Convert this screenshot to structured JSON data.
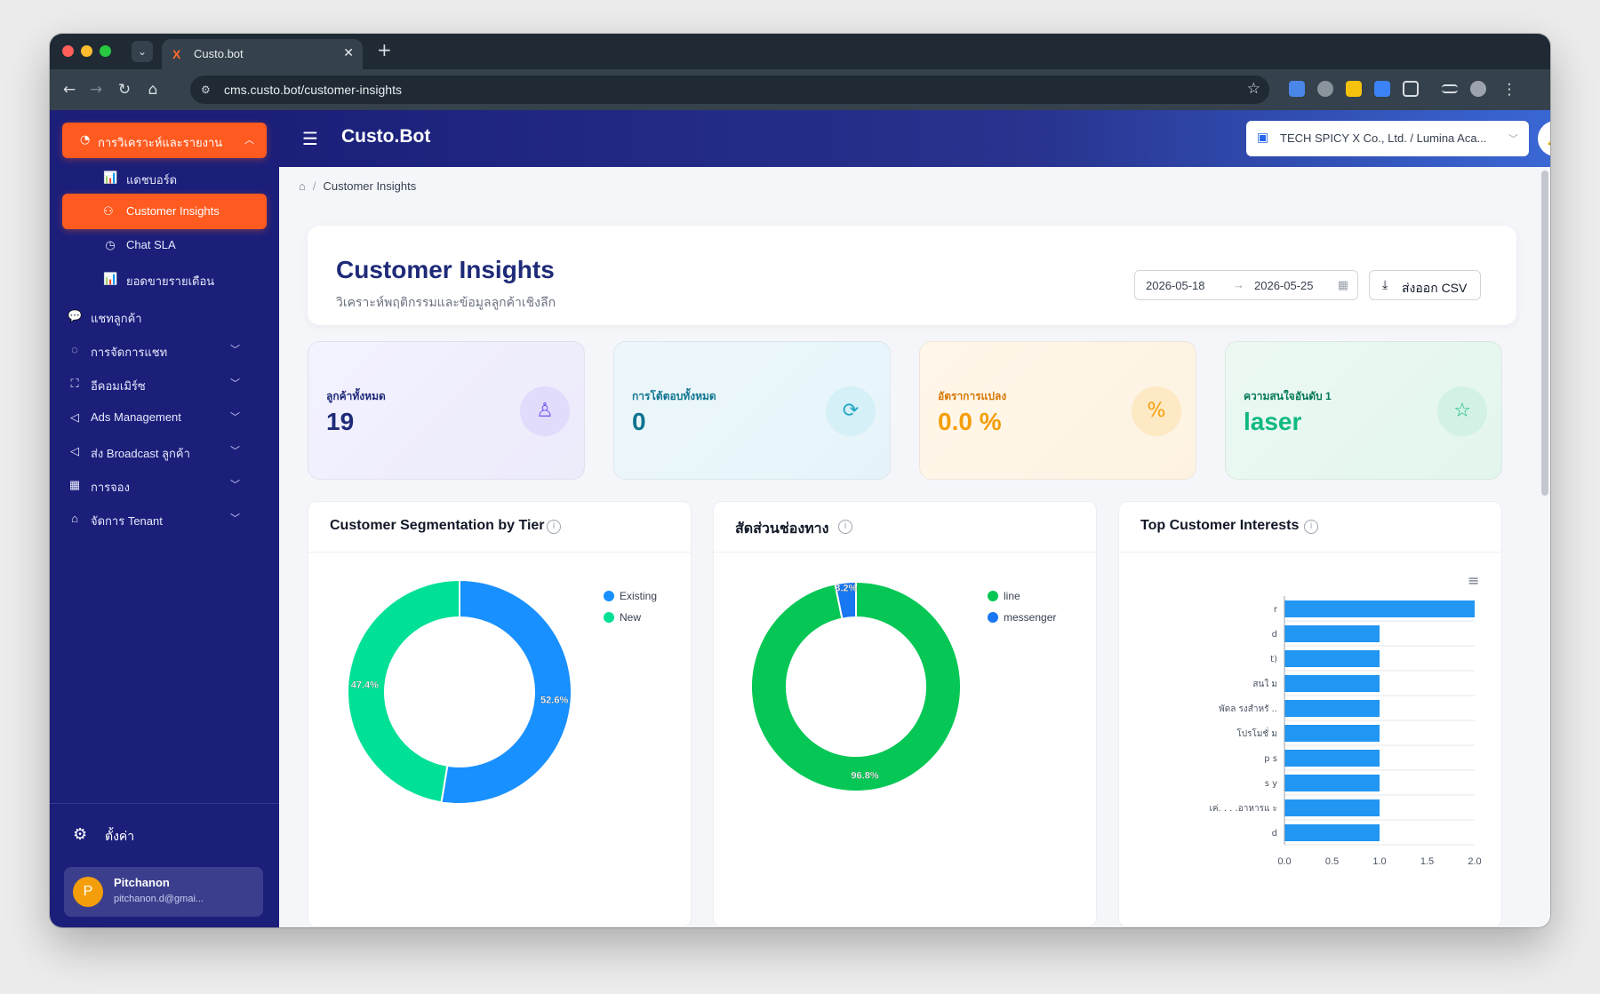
{
  "browser": {
    "tab_title": "Custo.bot",
    "url": "cms.custo.bot/customer-insights"
  },
  "sidebar": {
    "main_menu": "การวิเคราะห์และรายงาน",
    "sub_items": [
      {
        "label": "แดชบอร์ด",
        "icon": "bar-chart-icon"
      },
      {
        "label": "Customer Insights",
        "icon": "users-icon",
        "active": true
      },
      {
        "label": "Chat SLA",
        "icon": "clock-icon"
      },
      {
        "label": "ยอดขายรายเดือน",
        "icon": "bar-chart-icon"
      }
    ],
    "items": [
      {
        "label": "แชทลูกค้า",
        "icon": "wechat-icon"
      },
      {
        "label": "การจัดการแชท",
        "icon": "chat-bubble-icon"
      },
      {
        "label": "อีคอมเมิร์ซ",
        "icon": "shopping-bag-icon"
      },
      {
        "label": "Ads Management",
        "icon": "megaphone-icon"
      },
      {
        "label": "ส่ง Broadcast ลูกค้า",
        "icon": "megaphone-icon"
      },
      {
        "label": "การจอง",
        "icon": "calendar-icon"
      },
      {
        "label": "จัดการ Tenant",
        "icon": "home-icon"
      }
    ],
    "settings_label": "ตั้งค่า",
    "user": {
      "initial": "P",
      "name": "Pitchanon",
      "email": "pitchanon.d@gmai..."
    }
  },
  "topbar": {
    "brand": "Custo.Bot",
    "tenant": "TECH SPICY X Co., Ltd. / Lumina Aca..."
  },
  "breadcrumb": {
    "current": "Customer Insights"
  },
  "header": {
    "title": "Customer Insights",
    "subtitle": "วิเคราะห์พฤติกรรมและข้อมูลลูกค้าเชิงลึก",
    "date_start": "2026-05-18",
    "date_end": "2026-05-25",
    "export_label": "ส่งออก CSV"
  },
  "stats": [
    {
      "label": "ลูกค้าทั้งหมด",
      "value": "19",
      "icon": "user-icon",
      "color": "#1e2a78"
    },
    {
      "label": "การโต้ตอบทั้งหมด",
      "value": "0",
      "icon": "repeat-icon",
      "color": "#0e7490"
    },
    {
      "label": "อัตราการแปลง",
      "value": "0.0 %",
      "icon": "percent-icon",
      "color": "#f59e0b"
    },
    {
      "label": "ความสนใจอันดับ 1",
      "value": "laser",
      "icon": "star-icon",
      "color": "#10b981"
    }
  ],
  "chart_titles": {
    "tier": "Customer Segmentation by Tier",
    "channel": "สัดส่วนช่องทาง",
    "interests": "Top Customer Interests"
  },
  "chart_data": [
    {
      "type": "pie",
      "title": "Customer Segmentation by Tier",
      "labels": [
        "Existing",
        "New"
      ],
      "values": [
        52.6,
        47.4
      ],
      "colors": [
        "#1890ff",
        "#00e096"
      ],
      "legend": "top-right"
    },
    {
      "type": "pie",
      "title": "สัดส่วนช่องทาง",
      "labels": [
        "line",
        "messenger"
      ],
      "values": [
        96.8,
        3.2
      ],
      "colors": [
        "#06c755",
        "#1877f2"
      ],
      "legend": "top-right"
    },
    {
      "type": "bar",
      "title": "Top Customer Interests",
      "orientation": "horizontal",
      "categories": [
        "r",
        "d",
        "t)",
        "สนใ ม",
        "พัดล รงสำหรั ..",
        "โปรโมชั่ ม",
        "p s",
        "s y",
        "เค่. . . .อาหารแ ะ",
        "d"
      ],
      "values": [
        2,
        1,
        1,
        1,
        1,
        1,
        1,
        1,
        1,
        1
      ],
      "xticks": [
        "0.0",
        "0.5",
        "1.0",
        "1.5",
        "2.0"
      ],
      "xlim": [
        0,
        2
      ],
      "color": "#2196f3"
    }
  ]
}
